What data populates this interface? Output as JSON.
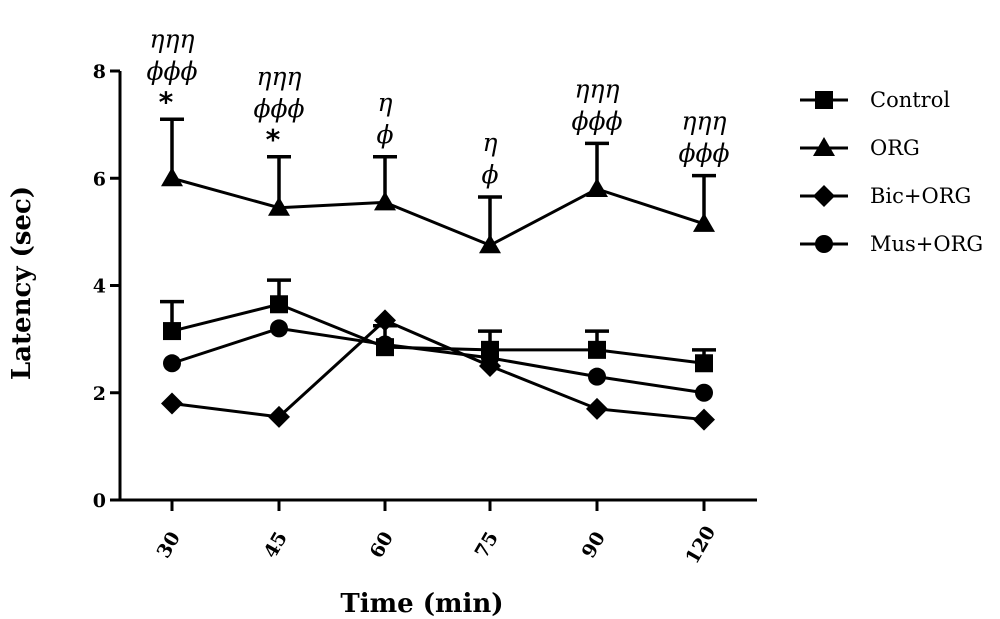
{
  "chart_data": {
    "type": "line",
    "title": "",
    "xlabel": "Time (min)",
    "ylabel": "Latency (sec)",
    "categories": [
      "30",
      "45",
      "60",
      "75",
      "90",
      "120"
    ],
    "yticks": [
      "0",
      "2",
      "4",
      "6",
      "8"
    ],
    "ylim": [
      0,
      8
    ],
    "grid": false,
    "legend_position": "right",
    "series": [
      {
        "name": "Control",
        "marker": "square",
        "values": [
          3.15,
          3.65,
          2.85,
          2.8,
          2.8,
          2.55
        ],
        "error": [
          0.55,
          0.45,
          0.4,
          0.35,
          0.35,
          0.25
        ]
      },
      {
        "name": "ORG",
        "marker": "triangle",
        "values": [
          6.0,
          5.45,
          5.55,
          4.75,
          5.8,
          5.15
        ],
        "error": [
          1.1,
          0.95,
          0.85,
          0.9,
          0.85,
          0.9
        ]
      },
      {
        "name": "Bic+ORG",
        "marker": "diamond",
        "values": [
          1.8,
          1.55,
          3.35,
          2.5,
          1.7,
          1.5
        ],
        "error": [
          0,
          0,
          0,
          0,
          0,
          0
        ]
      },
      {
        "name": "Mus+ORG",
        "marker": "circle",
        "values": [
          2.55,
          3.2,
          2.9,
          2.65,
          2.3,
          2.0
        ],
        "error": [
          0,
          0,
          0,
          0,
          0,
          0
        ]
      }
    ],
    "annotations": [
      {
        "category": "30",
        "lines": [
          "ηηη",
          "ϕϕϕ"
        ],
        "star": "*"
      },
      {
        "category": "45",
        "lines": [
          "ηηη",
          "ϕϕϕ"
        ],
        "star": "*"
      },
      {
        "category": "60",
        "lines": [
          "η",
          "ϕ"
        ],
        "star": ""
      },
      {
        "category": "75",
        "lines": [
          "η",
          "ϕ"
        ],
        "star": ""
      },
      {
        "category": "90",
        "lines": [
          "ηηη",
          "ϕϕϕ"
        ],
        "star": ""
      },
      {
        "category": "120",
        "lines": [
          "ηηη",
          "ϕϕϕ"
        ],
        "star": ""
      }
    ]
  }
}
